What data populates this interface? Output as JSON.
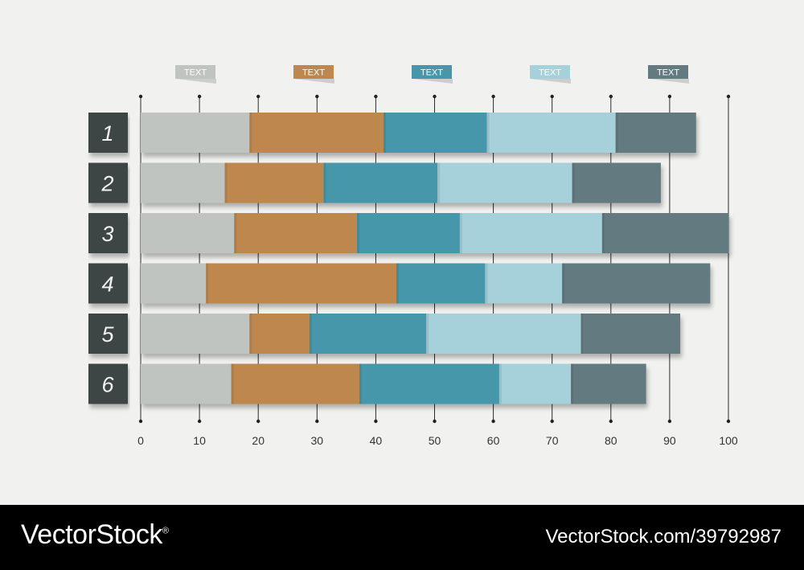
{
  "chart_data": {
    "type": "bar",
    "orientation": "horizontal",
    "stacked": true,
    "categories": [
      "1",
      "2",
      "3",
      "4",
      "5",
      "6"
    ],
    "series": [
      {
        "name": "TEXT",
        "color": "#bfc4c1",
        "values": [
          18.5,
          14.3,
          15.9,
          11.1,
          18.5,
          15.4
        ]
      },
      {
        "name": "TEXT",
        "color": "#bd874d",
        "values": [
          22.8,
          16.8,
          20.9,
          32.4,
          10.2,
          21.8
        ]
      },
      {
        "name": "TEXT",
        "color": "#4597a9",
        "values": [
          17.6,
          19.4,
          17.5,
          15.1,
          19.9,
          23.8
        ]
      },
      {
        "name": "TEXT",
        "color": "#a6d0da",
        "values": [
          21.9,
          22.9,
          24.2,
          13.1,
          26.3,
          12.2
        ]
      },
      {
        "name": "TEXT",
        "color": "#637a81",
        "values": [
          13.7,
          15.1,
          21.6,
          25.2,
          16.9,
          12.8
        ]
      }
    ],
    "xlim": [
      0,
      100
    ],
    "xticks": [
      "0",
      "10",
      "20",
      "30",
      "40",
      "50",
      "60",
      "70",
      "80",
      "90",
      "100"
    ],
    "grid": true,
    "legend_position": "top"
  },
  "footer": {
    "brand": "VectorStock",
    "brand_mark": "®",
    "image_id": "VectorStock.com/39792987"
  }
}
